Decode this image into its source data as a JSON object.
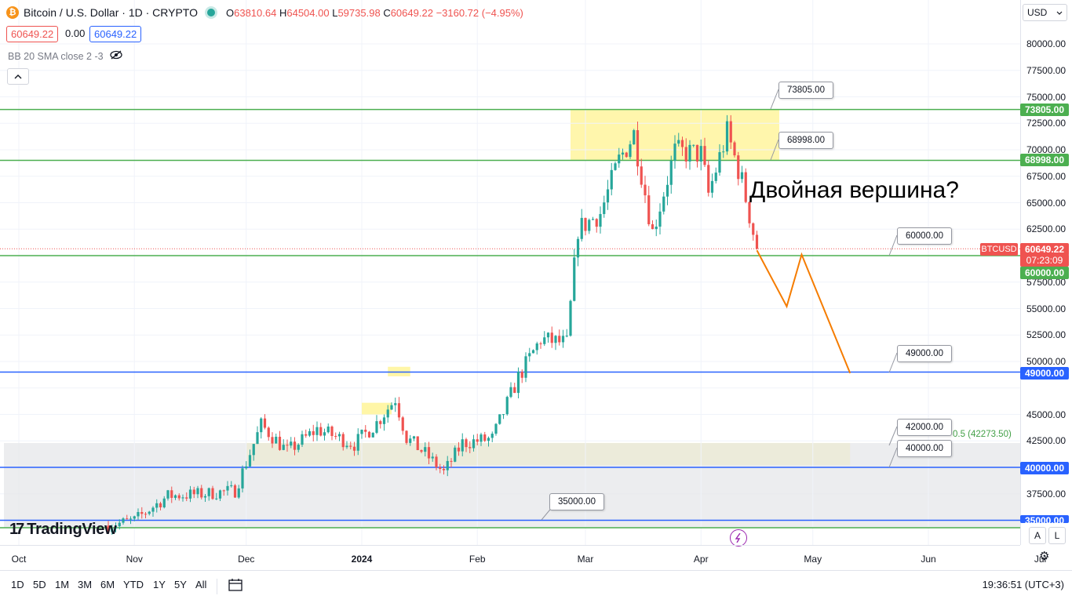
{
  "header": {
    "symbol_icon": "bitcoin-icon",
    "title": "Bitcoin / U.S. Dollar · 1D · CRYPTO",
    "ohlc": {
      "o_key": "O",
      "o": "63810.64",
      "h_key": "H",
      "h": "64504.00",
      "l_key": "L",
      "l": "59735.98",
      "c_key": "C",
      "c": "60649.22",
      "change": "−3160.72 (−4.95%)"
    },
    "bid": "60649.22",
    "spread": "0.00",
    "ask": "60649.22",
    "indicator": "BB 20 SMA close 2 -3",
    "indicator_icon": "eye-hidden-icon",
    "collapse_icon": "chevron-up-icon"
  },
  "currency": "USD",
  "annotation_text": "Двойная вершина?",
  "fib_label": "0.5 (42273.50)",
  "callouts": [
    "73805.00",
    "68998.00",
    "60000.00",
    "49000.00",
    "42000.00",
    "40000.00",
    "35000.00"
  ],
  "price_labels": {
    "l73805": "73805.00",
    "l68998": "68998.00",
    "symbol": "BTCUSD",
    "current": "60649.22",
    "countdown": "07:23:09",
    "l60000": "60000.00",
    "l49000": "49000.00",
    "l40000": "40000.00",
    "l35000": "35000.00"
  },
  "colors": {
    "up": "#26a69a",
    "down": "#ef5350",
    "hline_green": "#4caf50",
    "hline_blue": "#2962ff",
    "zone_yellow": "#fff59d",
    "projection": "#f57c00",
    "gray_zone": "#e6e7ea"
  },
  "price_ticks": [
    "80000.00",
    "77500.00",
    "75000.00",
    "72500.00",
    "70000.00",
    "67500.00",
    "65000.00",
    "62500.00",
    "57500.00",
    "55000.00",
    "52500.00",
    "50000.00",
    "45000.00",
    "42500.00",
    "37500.00"
  ],
  "time_ticks": [
    "Oct",
    "Nov",
    "Dec",
    "2024",
    "Feb",
    "Mar",
    "Apr",
    "May",
    "Jun",
    "Jul"
  ],
  "scale_buttons": [
    "A",
    "L"
  ],
  "ranges": [
    "1D",
    "5D",
    "1M",
    "3M",
    "6M",
    "YTD",
    "1Y",
    "5Y",
    "All"
  ],
  "clock": "19:36:51 (UTC+3)",
  "logo": "TradingView",
  "chart_data": {
    "type": "candlestick",
    "title": "Bitcoin / U.S. Dollar · 1D · CRYPTO",
    "y_unit": "USD",
    "ylim": [
      33300,
      82000
    ],
    "x_range": [
      "2023-09-27",
      "2024-07-10"
    ],
    "grid": true,
    "path_daily_close": [
      {
        "date": "2023-10-25",
        "v": 34500
      },
      {
        "date": "2023-11-01",
        "v": 35000
      },
      {
        "date": "2023-11-10",
        "v": 37300
      },
      {
        "date": "2023-11-20",
        "v": 37500
      },
      {
        "date": "2023-11-28",
        "v": 37800
      },
      {
        "date": "2023-12-05",
        "v": 44000
      },
      {
        "date": "2023-12-12",
        "v": 41500
      },
      {
        "date": "2023-12-20",
        "v": 43600
      },
      {
        "date": "2023-12-30",
        "v": 42200
      },
      {
        "date": "2024-01-05",
        "v": 44200
      },
      {
        "date": "2024-01-10",
        "v": 46500
      },
      {
        "date": "2024-01-13",
        "v": 42800
      },
      {
        "date": "2024-01-18",
        "v": 41300
      },
      {
        "date": "2024-01-23",
        "v": 39500
      },
      {
        "date": "2024-01-28",
        "v": 42300
      },
      {
        "date": "2024-02-05",
        "v": 42700
      },
      {
        "date": "2024-02-12",
        "v": 48500
      },
      {
        "date": "2024-02-18",
        "v": 52100
      },
      {
        "date": "2024-02-25",
        "v": 51700
      },
      {
        "date": "2024-02-28",
        "v": 62500
      },
      {
        "date": "2024-03-05",
        "v": 64000
      },
      {
        "date": "2024-03-10",
        "v": 69000
      },
      {
        "date": "2024-03-14",
        "v": 71500
      },
      {
        "date": "2024-03-19",
        "v": 62200
      },
      {
        "date": "2024-03-25",
        "v": 69800
      },
      {
        "date": "2024-04-01",
        "v": 69600
      },
      {
        "date": "2024-04-03",
        "v": 65800
      },
      {
        "date": "2024-04-08",
        "v": 71600
      },
      {
        "date": "2024-04-12",
        "v": 67000
      },
      {
        "date": "2024-04-16",
        "v": 60649
      }
    ],
    "horizontal_levels": [
      {
        "label": "73805.00",
        "value": 73805,
        "color": "green"
      },
      {
        "label": "68998.00",
        "value": 68998,
        "color": "green"
      },
      {
        "label": "60000.00",
        "value": 60000,
        "color": "green"
      },
      {
        "label": "49000.00",
        "value": 49000,
        "color": "blue"
      },
      {
        "label": "40000.00",
        "value": 40000,
        "color": "blue"
      },
      {
        "label": "35000.00",
        "value": 35000,
        "color": "blue"
      }
    ],
    "current_price": 60649.22,
    "zones": [
      {
        "from": "2024-02-26",
        "to": "2024-04-22",
        "low": 68998,
        "high": 73805,
        "kind": "resistance"
      },
      {
        "from": "2023-12-01",
        "to": "2024-05-11",
        "low": 40200,
        "high": 42300,
        "kind": "support"
      },
      {
        "from": "2023-09-27",
        "to": "2024-07-10",
        "low": 34300,
        "high": 42300,
        "kind": "gray-band"
      }
    ],
    "small_markers": [
      {
        "from": "2024-01-01",
        "to": "2024-01-09",
        "low": 45000,
        "high": 46100
      },
      {
        "from": "2024-01-08",
        "to": "2024-01-14",
        "low": 48600,
        "high": 49500
      }
    ],
    "projection_path": [
      {
        "date": "2024-04-16",
        "v": 60500
      },
      {
        "date": "2024-04-24",
        "v": 55200
      },
      {
        "date": "2024-04-28",
        "v": 60100
      },
      {
        "date": "2024-05-11",
        "v": 48900
      }
    ]
  }
}
